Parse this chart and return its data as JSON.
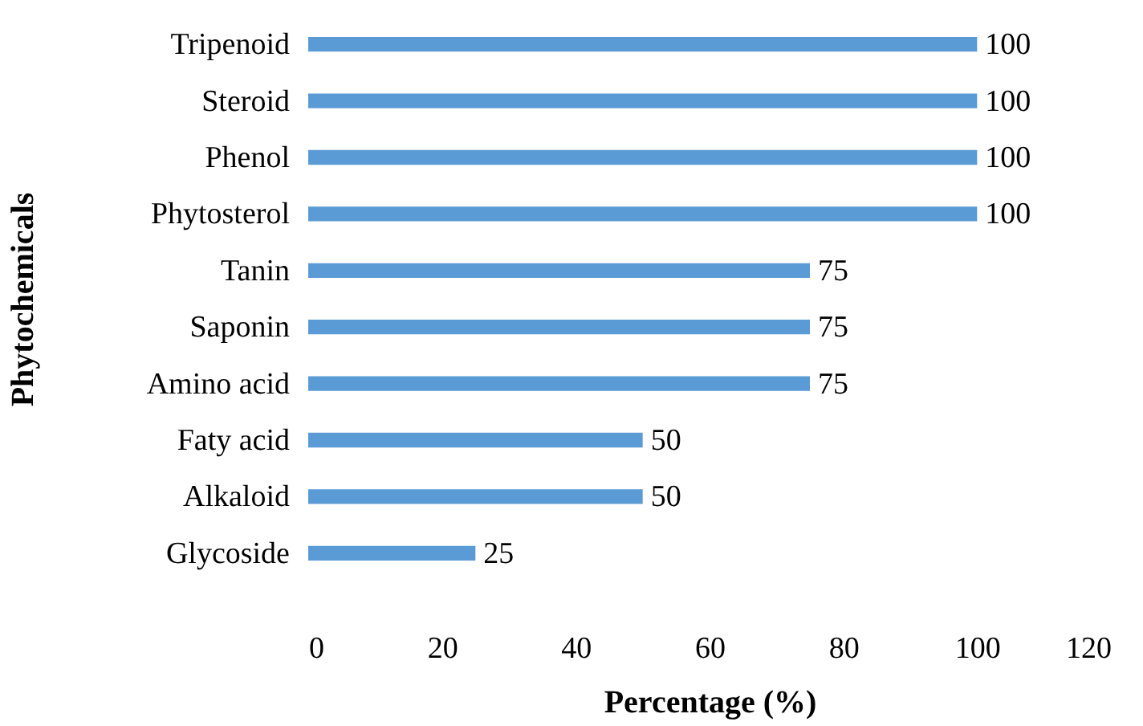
{
  "chart_data": {
    "type": "bar",
    "orientation": "horizontal",
    "xlabel": "Percentage (%)",
    "ylabel": "Phytochemicals",
    "categories": [
      "Tripenoid",
      "Steroid",
      "Phenol",
      "Phytosterol",
      "Tanin",
      "Saponin",
      "Amino acid",
      "Faty acid",
      "Alkaloid",
      "Glycoside"
    ],
    "values": [
      100,
      100,
      100,
      100,
      75,
      75,
      75,
      50,
      50,
      25
    ],
    "color": "#5b9bd5",
    "xlim": [
      0,
      120
    ],
    "xticks": [
      0,
      20,
      40,
      60,
      80,
      100,
      120
    ],
    "data_labels": true,
    "grid": false
  }
}
